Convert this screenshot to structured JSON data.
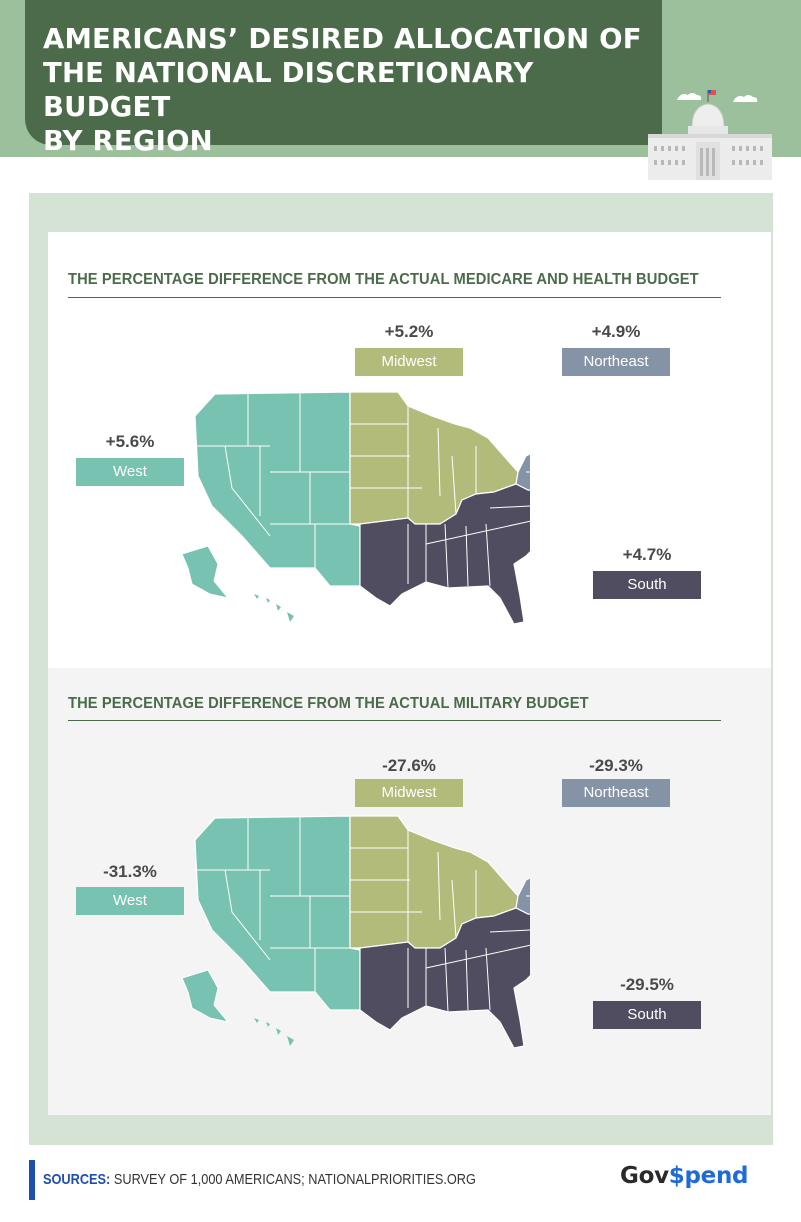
{
  "header": {
    "title": "AMERICANS’ DESIRED ALLOCATION OF\nTHE NATIONAL DISCRETIONARY BUDGET\nBY REGION"
  },
  "colors": {
    "west": "#78c2b1",
    "midwest": "#b3bb7b",
    "northeast": "#8593a6",
    "south": "#4f4d5f",
    "accent_green": "#4b6b4a"
  },
  "sections": [
    {
      "title": "THE PERCENTAGE DIFFERENCE FROM THE ACTUAL MEDICARE AND HEALTH BUDGET",
      "regions": {
        "midwest": {
          "label": "Midwest",
          "value": "+5.2%"
        },
        "northeast": {
          "label": "Northeast",
          "value": "+4.9%"
        },
        "west": {
          "label": "West",
          "value": "+5.6%"
        },
        "south": {
          "label": "South",
          "value": "+4.7%"
        }
      }
    },
    {
      "title": "THE PERCENTAGE DIFFERENCE FROM THE ACTUAL MILITARY BUDGET",
      "regions": {
        "midwest": {
          "label": "Midwest",
          "value": "-27.6%"
        },
        "northeast": {
          "label": "Northeast",
          "value": "-29.3%"
        },
        "west": {
          "label": "West",
          "value": "-31.3%"
        },
        "south": {
          "label": "South",
          "value": "-29.5%"
        }
      }
    }
  ],
  "footer": {
    "sources_label": "SOURCES:",
    "sources_text": " SURVEY OF 1,000 AMERICANS; NATIONALPRIORITIES.ORG",
    "logo_part1": "Gov",
    "logo_part2": "$pend"
  }
}
